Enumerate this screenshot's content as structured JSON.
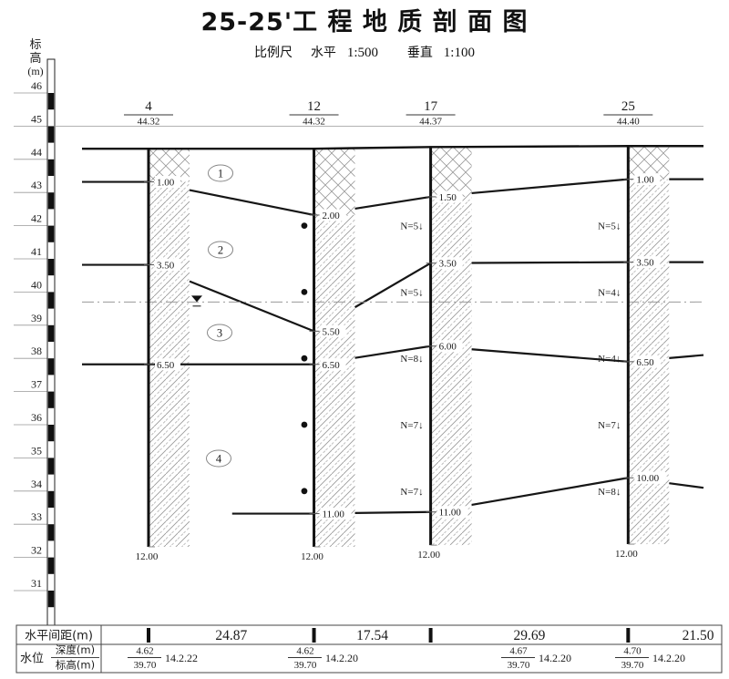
{
  "title": "25-25'工 程 地 质 剖 面 图",
  "scale_note": {
    "label": "比例尺",
    "horizontal_label": "水平",
    "horizontal_value": "1:500",
    "vertical_label": "垂直",
    "vertical_value": "1:100"
  },
  "elevation_axis": {
    "label_char_1": "标",
    "label_char_2": "高",
    "label_unit": "(m)",
    "max": 46,
    "min": 31,
    "tick_step": 1
  },
  "chart_data": {
    "type": "geological_cross_section",
    "boreholes": [
      {
        "name": "4",
        "ground_elevation": 44.32,
        "total_depth": 12,
        "strata_depths": [
          1,
          3.5,
          6.5
        ],
        "water": {
          "depth": 4.62,
          "elevation": 39.7,
          "date": "14.2.22"
        }
      },
      {
        "name": "12",
        "ground_elevation": 44.32,
        "total_depth": 12,
        "strata_depths": [
          2,
          5.5,
          6.5,
          11
        ],
        "water": {
          "depth": 4.62,
          "elevation": 39.7,
          "date": "14.2.20"
        }
      },
      {
        "name": "17",
        "ground_elevation": 44.37,
        "total_depth": 12,
        "strata_depths": [
          1.5,
          3.5,
          6,
          11
        ],
        "water": {
          "depth": 4.67,
          "elevation": 39.7,
          "date": "14.2.20"
        }
      },
      {
        "name": "25",
        "ground_elevation": 44.4,
        "total_depth": 12,
        "strata_depths": [
          1,
          3.5,
          6.5,
          10
        ],
        "water": {
          "depth": 4.7,
          "elevation": 39.7,
          "date": "14.2.20"
        }
      }
    ],
    "spacings_m": [
      24.87,
      17.54,
      29.69,
      21.5
    ],
    "layers": [
      {
        "number": "1"
      },
      {
        "number": "2"
      },
      {
        "number": "3"
      },
      {
        "number": "4"
      }
    ],
    "boundaries": [
      {
        "id": "layer1-2",
        "depths": [
          1,
          2,
          1.5,
          1
        ],
        "right_end_elevation": 43.4
      },
      {
        "id": "layer2-3",
        "depths": [
          3.5,
          5.5,
          3.5,
          3.5
        ],
        "right_end_elevation": 40.9
      },
      {
        "id": "layer3-4",
        "depths": [
          6.5,
          6.5,
          6,
          6.5
        ],
        "right_end_elevation": 38.1
      },
      {
        "id": "layer4-5",
        "depths": [
          null,
          11,
          11,
          10
        ],
        "left_pinch_offset_m": 12.3,
        "right_end_elevation": 34.1
      }
    ],
    "water_table_elevation": 39.7,
    "spt_tests": [
      {
        "between": [
          "12",
          "17"
        ],
        "values": [
          {
            "elevation": 42,
            "label": "N=5↓"
          },
          {
            "elevation": 40,
            "label": "N=5↓"
          },
          {
            "elevation": 38,
            "label": "N=8↓"
          },
          {
            "elevation": 36,
            "label": "N=7↓"
          },
          {
            "elevation": 34,
            "label": "N=7↓"
          }
        ]
      },
      {
        "between": [
          "17",
          "25"
        ],
        "values": [
          {
            "elevation": 42,
            "label": "N=5↓"
          },
          {
            "elevation": 40,
            "label": "N=4↓"
          },
          {
            "elevation": 38,
            "label": "N=4↓"
          },
          {
            "elevation": 36,
            "label": "N=7↓"
          },
          {
            "elevation": 34,
            "label": "N=8↓"
          }
        ]
      }
    ],
    "sample_points": {
      "borehole": "12",
      "elevations": [
        42,
        40,
        38,
        36,
        34
      ]
    }
  },
  "table": {
    "spacing_row_label": "水平间距(m)",
    "water_row_label": "水位",
    "water_depth_label": "深度(m)",
    "water_elevation_label": "标高(m)"
  }
}
